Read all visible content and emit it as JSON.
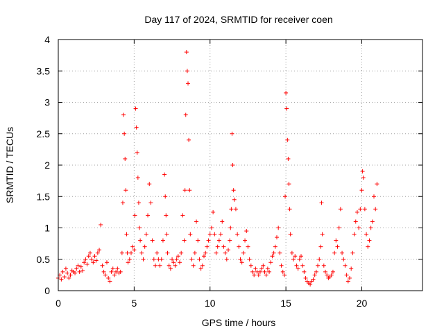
{
  "chart_data": {
    "type": "scatter",
    "title": "Day 117 of 2024, SRMTID for receiver coen",
    "xlabel": "GPS time / hours",
    "ylabel": "SRMTID / TECUs",
    "xlim": [
      0,
      24
    ],
    "ylim": [
      0,
      4
    ],
    "x_ticks": [
      0,
      5,
      10,
      15,
      20
    ],
    "x_tick_labels": [
      "0",
      "5",
      "10",
      "15",
      "20"
    ],
    "y_ticks": [
      0,
      0.5,
      1,
      1.5,
      2,
      2.5,
      3,
      3.5,
      4
    ],
    "y_tick_labels": [
      "0",
      "0.5",
      "1",
      "1.5",
      "2",
      "2.5",
      "3",
      "3.5",
      "4"
    ],
    "grid": true,
    "marker": "plus",
    "series": [
      {
        "name": "SRMTID",
        "color": "#ff0000",
        "x": [
          0.0,
          0.1,
          0.2,
          0.3,
          0.4,
          0.5,
          0.6,
          0.7,
          0.8,
          0.9,
          1.0,
          1.1,
          1.2,
          1.3,
          1.4,
          1.5,
          1.6,
          1.7,
          1.8,
          1.9,
          2.0,
          2.1,
          2.2,
          2.3,
          2.4,
          2.5,
          2.6,
          2.7,
          2.8,
          2.9,
          3.0,
          3.1,
          3.2,
          3.3,
          3.4,
          3.5,
          3.6,
          3.7,
          3.8,
          3.9,
          4.0,
          4.1,
          4.2,
          4.25,
          4.3,
          4.35,
          4.4,
          4.45,
          4.5,
          4.55,
          4.6,
          4.7,
          4.8,
          4.9,
          5.0,
          5.05,
          5.1,
          5.15,
          5.2,
          5.25,
          5.3,
          5.35,
          5.4,
          5.5,
          5.6,
          5.7,
          5.8,
          5.9,
          6.0,
          6.1,
          6.2,
          6.3,
          6.4,
          6.5,
          6.6,
          6.7,
          6.8,
          6.9,
          7.0,
          7.05,
          7.1,
          7.15,
          7.2,
          7.3,
          7.4,
          7.5,
          7.6,
          7.7,
          7.8,
          7.9,
          8.0,
          8.1,
          8.2,
          8.3,
          8.35,
          8.4,
          8.45,
          8.5,
          8.55,
          8.6,
          8.65,
          8.7,
          8.8,
          8.9,
          9.0,
          9.1,
          9.2,
          9.3,
          9.4,
          9.5,
          9.6,
          9.7,
          9.8,
          9.9,
          10.0,
          10.1,
          10.2,
          10.3,
          10.4,
          10.5,
          10.6,
          10.7,
          10.8,
          10.9,
          11.0,
          11.1,
          11.2,
          11.3,
          11.35,
          11.4,
          11.45,
          11.5,
          11.55,
          11.6,
          11.7,
          11.8,
          11.9,
          12.0,
          12.1,
          12.2,
          12.3,
          12.4,
          12.5,
          12.6,
          12.7,
          12.8,
          12.9,
          13.0,
          13.1,
          13.2,
          13.3,
          13.4,
          13.5,
          13.6,
          13.7,
          13.8,
          13.9,
          14.0,
          14.1,
          14.2,
          14.3,
          14.4,
          14.5,
          14.6,
          14.7,
          14.8,
          14.9,
          14.95,
          15.0,
          15.05,
          15.1,
          15.15,
          15.2,
          15.25,
          15.3,
          15.4,
          15.5,
          15.6,
          15.7,
          15.8,
          15.9,
          16.0,
          16.1,
          16.2,
          16.3,
          16.4,
          16.5,
          16.6,
          16.7,
          16.8,
          16.9,
          17.0,
          17.1,
          17.2,
          17.3,
          17.35,
          17.4,
          17.5,
          17.6,
          17.7,
          17.8,
          17.9,
          18.0,
          18.1,
          18.2,
          18.3,
          18.4,
          18.5,
          18.6,
          18.7,
          18.8,
          18.9,
          19.0,
          19.1,
          19.2,
          19.3,
          19.4,
          19.5,
          19.6,
          19.7,
          19.8,
          19.9,
          20.0,
          20.05,
          20.1,
          20.2,
          20.3,
          20.4,
          20.5,
          20.6,
          20.7,
          20.8,
          20.9,
          21.0
        ],
        "y": [
          0.2,
          0.25,
          0.18,
          0.3,
          0.22,
          0.35,
          0.28,
          0.2,
          0.25,
          0.32,
          0.3,
          0.28,
          0.35,
          0.4,
          0.3,
          0.38,
          0.32,
          0.45,
          0.5,
          0.42,
          0.55,
          0.6,
          0.5,
          0.45,
          0.55,
          0.48,
          0.6,
          0.65,
          1.05,
          0.4,
          0.3,
          0.25,
          0.45,
          0.2,
          0.15,
          0.3,
          0.35,
          0.25,
          0.3,
          0.35,
          0.28,
          0.3,
          0.6,
          1.4,
          2.8,
          2.5,
          2.1,
          1.6,
          0.9,
          0.6,
          0.45,
          0.5,
          0.6,
          0.7,
          0.65,
          1.2,
          2.9,
          2.6,
          2.2,
          1.8,
          1.4,
          1.0,
          0.8,
          0.6,
          0.5,
          0.7,
          0.9,
          1.2,
          1.7,
          1.4,
          0.8,
          0.5,
          0.4,
          0.6,
          0.5,
          0.4,
          0.5,
          0.8,
          1.85,
          1.5,
          1.2,
          0.9,
          0.6,
          0.4,
          0.35,
          0.5,
          0.45,
          0.4,
          0.5,
          0.55,
          0.45,
          0.6,
          1.2,
          0.8,
          1.6,
          2.8,
          3.8,
          3.5,
          3.3,
          2.4,
          1.6,
          0.9,
          0.5,
          0.4,
          0.6,
          1.1,
          0.8,
          0.5,
          0.35,
          0.4,
          0.55,
          0.6,
          0.7,
          0.8,
          0.9,
          1.0,
          1.25,
          0.9,
          0.6,
          0.7,
          0.8,
          0.9,
          1.1,
          0.7,
          0.6,
          0.5,
          0.65,
          0.8,
          1.0,
          1.3,
          2.5,
          2.0,
          1.6,
          1.45,
          1.3,
          0.9,
          0.7,
          0.5,
          0.45,
          0.6,
          0.8,
          0.95,
          0.7,
          0.5,
          0.4,
          0.3,
          0.25,
          0.35,
          0.3,
          0.25,
          0.3,
          0.35,
          0.4,
          0.3,
          0.25,
          0.35,
          0.3,
          0.45,
          0.55,
          0.6,
          0.7,
          0.85,
          1.0,
          0.6,
          0.4,
          0.3,
          0.25,
          1.5,
          3.15,
          2.9,
          2.4,
          2.1,
          1.7,
          1.3,
          0.9,
          0.6,
          0.5,
          0.55,
          0.4,
          0.35,
          0.5,
          0.55,
          0.4,
          0.3,
          0.2,
          0.15,
          0.12,
          0.1,
          0.15,
          0.18,
          0.25,
          0.3,
          0.4,
          0.5,
          0.7,
          1.4,
          0.9,
          0.4,
          0.3,
          0.25,
          0.2,
          0.22,
          0.25,
          0.3,
          0.6,
          0.8,
          0.7,
          1.0,
          1.3,
          0.6,
          0.5,
          0.4,
          0.25,
          0.15,
          0.2,
          0.35,
          0.6,
          0.9,
          1.1,
          1.25,
          1.0,
          1.3,
          1.6,
          1.9,
          1.8,
          1.3,
          0.9,
          0.7,
          0.8,
          1.0,
          1.1,
          1.5,
          1.3,
          1.7
        ]
      }
    ]
  }
}
